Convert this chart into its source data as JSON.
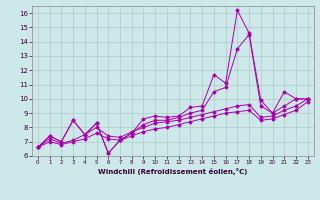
{
  "xlabel": "Windchill (Refroidissement éolien,°C)",
  "background_color": "#cce8e8",
  "grid_color": "#b0c8c8",
  "line_color": "#aa00aa",
  "xlim": [
    -0.5,
    23.5
  ],
  "ylim": [
    6,
    16.5
  ],
  "xticks": [
    0,
    1,
    2,
    3,
    4,
    5,
    6,
    7,
    8,
    9,
    10,
    11,
    12,
    13,
    14,
    15,
    16,
    17,
    18,
    19,
    20,
    21,
    22,
    23
  ],
  "yticks": [
    6,
    7,
    8,
    9,
    10,
    11,
    12,
    13,
    14,
    15,
    16
  ],
  "series": [
    {
      "x": [
        0,
        1,
        2,
        3,
        4,
        5,
        6,
        7,
        8,
        9,
        10,
        11,
        12,
        13,
        14,
        15,
        16,
        17,
        18,
        19,
        20,
        21,
        22,
        23
      ],
      "y": [
        6.6,
        7.4,
        7.0,
        8.5,
        7.5,
        8.3,
        6.2,
        7.1,
        7.6,
        8.6,
        8.8,
        8.7,
        8.8,
        9.4,
        9.5,
        11.7,
        11.1,
        16.2,
        14.6,
        9.9,
        9.0,
        10.5,
        10.0,
        10.0
      ]
    },
    {
      "x": [
        0,
        1,
        2,
        3,
        4,
        5,
        6,
        7,
        8,
        9,
        10,
        11,
        12,
        13,
        14,
        15,
        16,
        17,
        18,
        19,
        20,
        21,
        22,
        23
      ],
      "y": [
        6.6,
        7.4,
        7.0,
        8.5,
        7.5,
        8.3,
        6.2,
        7.1,
        7.6,
        8.2,
        8.5,
        8.5,
        8.7,
        9.0,
        9.2,
        10.5,
        10.8,
        13.5,
        14.5,
        9.5,
        9.0,
        9.5,
        10.0,
        10.0
      ]
    },
    {
      "x": [
        0,
        1,
        2,
        3,
        4,
        5,
        6,
        7,
        8,
        9,
        10,
        11,
        12,
        13,
        14,
        15,
        16,
        17,
        18,
        19,
        20,
        21,
        22,
        23
      ],
      "y": [
        6.6,
        7.2,
        6.9,
        7.1,
        7.5,
        8.0,
        7.4,
        7.3,
        7.7,
        8.0,
        8.3,
        8.4,
        8.5,
        8.7,
        8.9,
        9.1,
        9.3,
        9.5,
        9.6,
        8.7,
        8.8,
        9.2,
        9.5,
        10.0
      ]
    },
    {
      "x": [
        0,
        1,
        2,
        3,
        4,
        5,
        6,
        7,
        8,
        9,
        10,
        11,
        12,
        13,
        14,
        15,
        16,
        17,
        18,
        19,
        20,
        21,
        22,
        23
      ],
      "y": [
        6.6,
        7.0,
        6.8,
        7.0,
        7.2,
        7.6,
        7.2,
        7.1,
        7.4,
        7.7,
        7.9,
        8.0,
        8.2,
        8.4,
        8.6,
        8.8,
        9.0,
        9.1,
        9.2,
        8.5,
        8.6,
        8.9,
        9.2,
        9.8
      ]
    }
  ]
}
